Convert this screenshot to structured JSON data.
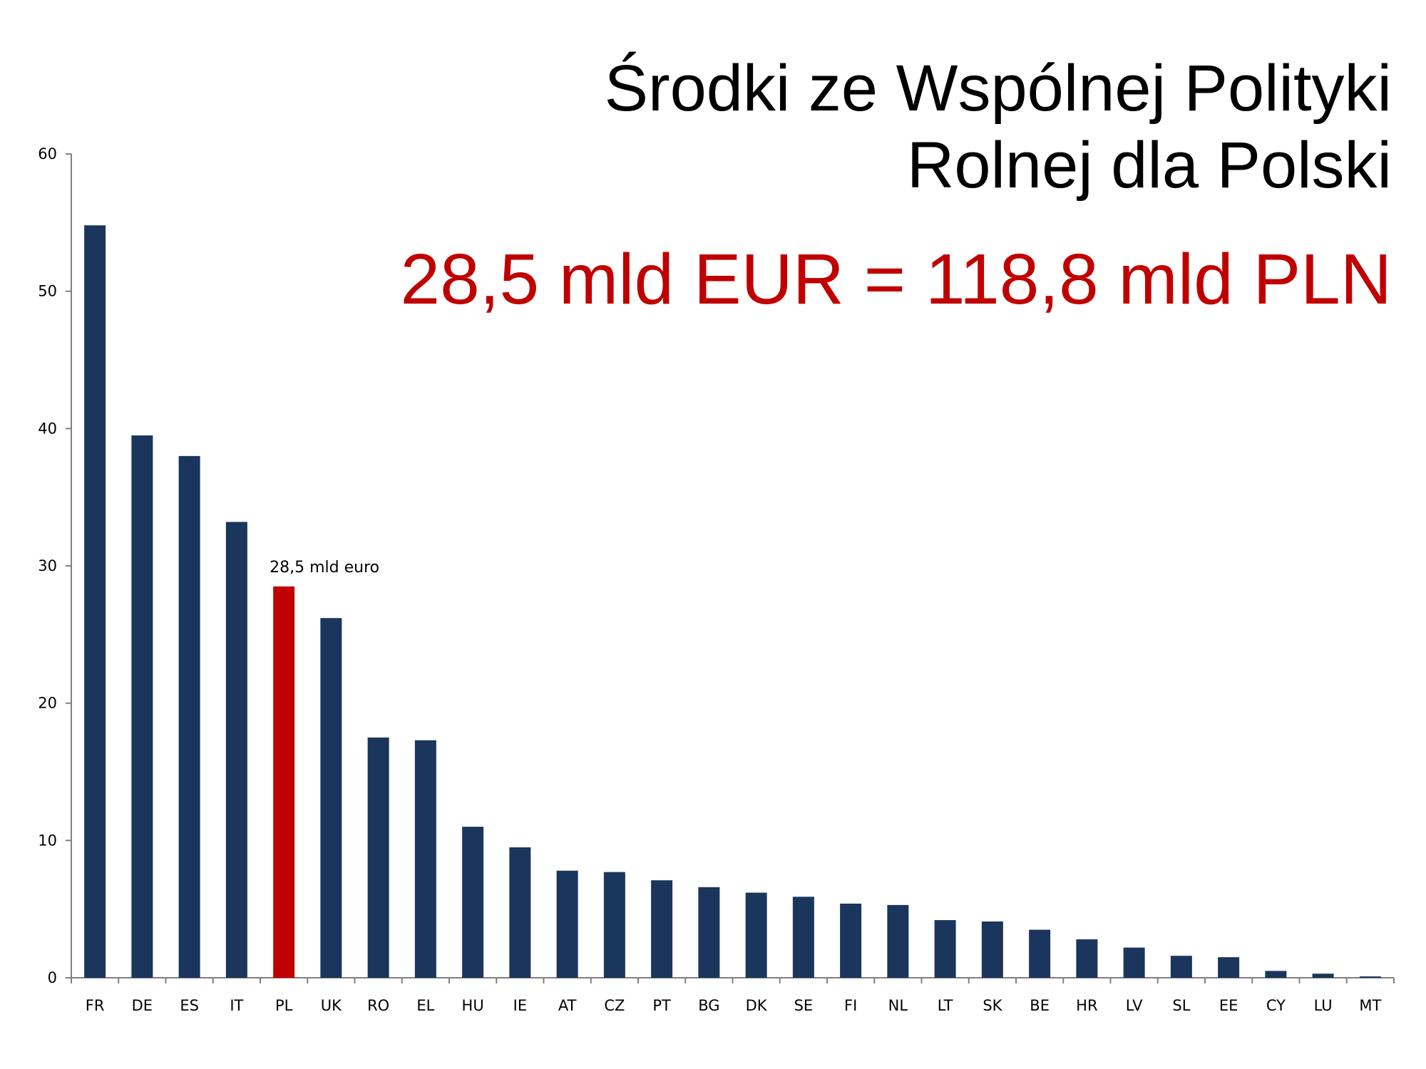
{
  "title_lines": [
    "Środki ze Wspólnej Polityki",
    "Rolnej dla Polski"
  ],
  "subtitle": "28,5 mld EUR = 118,8 mld PLN",
  "colors": {
    "bar": "#1b365d",
    "highlight": "#c00000",
    "title": "#000000",
    "subtitle": "#c00000",
    "axis": "#808080"
  },
  "chart_data": {
    "type": "bar",
    "categories": [
      "FR",
      "DE",
      "ES",
      "IT",
      "PL",
      "UK",
      "RO",
      "EL",
      "HU",
      "IE",
      "AT",
      "CZ",
      "PT",
      "BG",
      "DK",
      "SE",
      "FI",
      "NL",
      "LT",
      "SK",
      "BE",
      "HR",
      "LV",
      "SL",
      "EE",
      "CY",
      "LU",
      "MT"
    ],
    "values": [
      54.8,
      39.5,
      38.0,
      33.2,
      28.5,
      26.2,
      17.5,
      17.3,
      11.0,
      9.5,
      7.8,
      7.7,
      7.1,
      6.6,
      6.2,
      5.9,
      5.4,
      5.3,
      4.2,
      4.1,
      3.5,
      2.8,
      2.2,
      1.6,
      1.5,
      0.5,
      0.3,
      0.1
    ],
    "ylim": [
      0,
      60
    ],
    "yticks": [
      0,
      10,
      20,
      30,
      40,
      50,
      60
    ],
    "highlight_category": "PL",
    "annotations": [
      {
        "category": "PL",
        "text": "28,5 mld euro"
      }
    ],
    "grid": false,
    "legend": "none",
    "xlabel": "",
    "ylabel": ""
  }
}
